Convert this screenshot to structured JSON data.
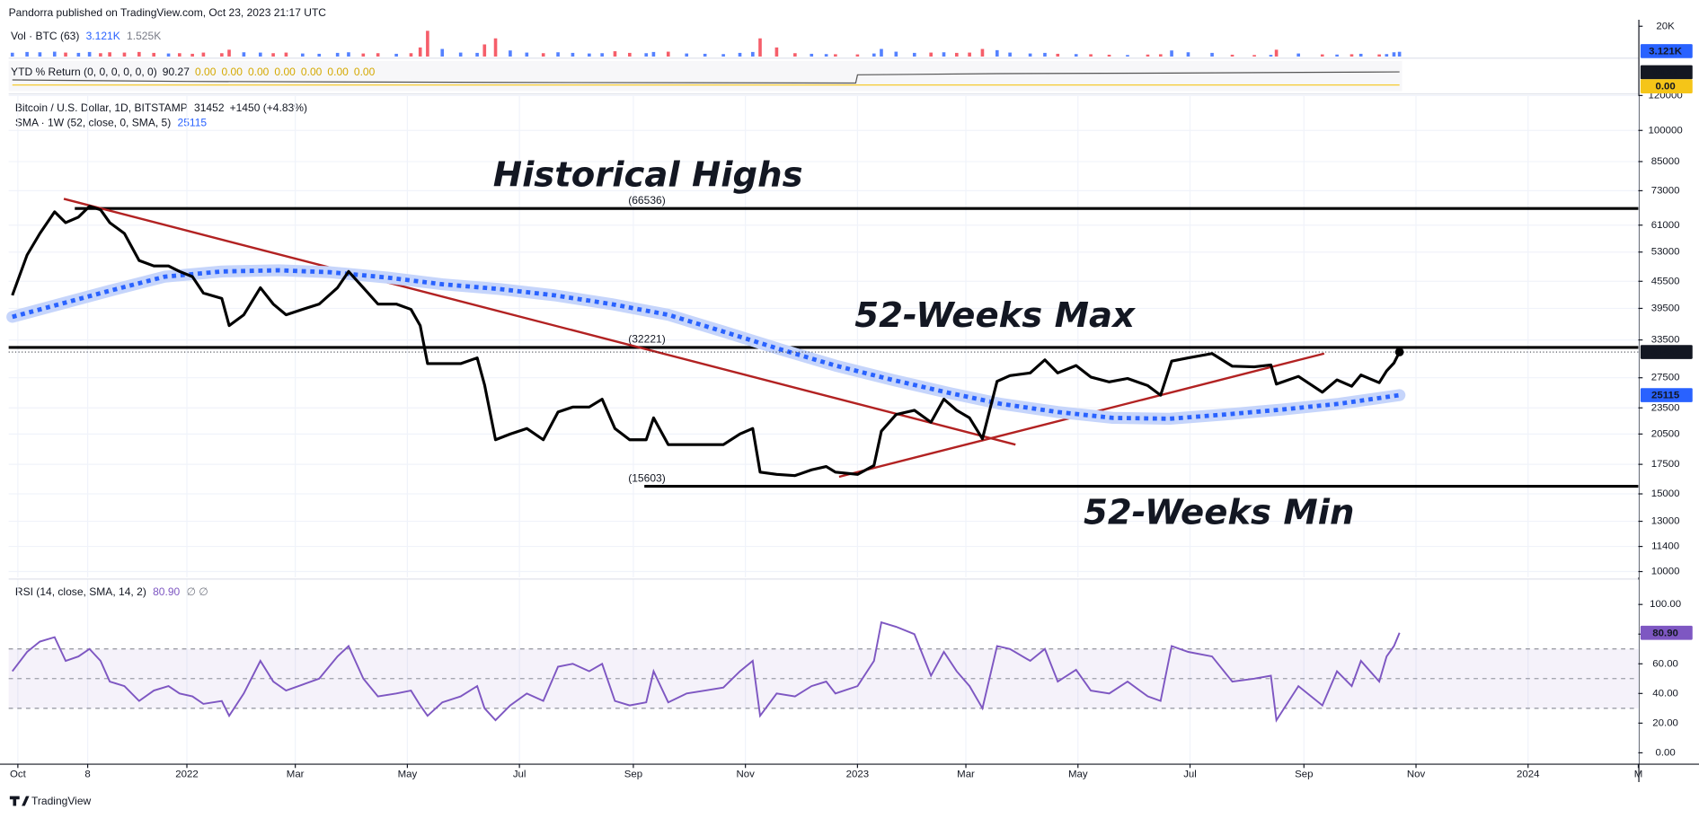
{
  "header": "Pandorra published on TradingView.com, Oct 23, 2023 21:17 UTC",
  "footer": "TradingView",
  "chart_data": [
    {
      "type": "line",
      "log_scale": true,
      "grid": true,
      "change": "+1450 (+4.83%)",
      "ylim": [
        9700,
        120000
      ],
      "yticks": [
        10000,
        11400,
        13000,
        15000,
        17500,
        20500,
        23500,
        27500,
        33500,
        39500,
        45500,
        53000,
        61000,
        73000,
        85000,
        100000,
        120000
      ],
      "series": [
        {
          "name": "Bitcoin / U.S. Dollar, 1D, BITSTAMP",
          "color": "#000000",
          "line_width": 2.6,
          "x": [
            "2021-09-28",
            "2021-10-06",
            "2021-10-13",
            "2021-10-21",
            "2021-10-27",
            "2021-11-03",
            "2021-11-09",
            "2021-11-15",
            "2021-11-20",
            "2021-11-28",
            "2021-12-06",
            "2021-12-14",
            "2021-12-22",
            "2021-12-28",
            "2022-01-04",
            "2022-01-10",
            "2022-01-20",
            "2022-01-24",
            "2022-02-01",
            "2022-02-10",
            "2022-02-17",
            "2022-02-24",
            "2022-03-05",
            "2022-03-14",
            "2022-03-24",
            "2022-03-30",
            "2022-04-07",
            "2022-04-15",
            "2022-04-25",
            "2022-05-03",
            "2022-05-08",
            "2022-05-12",
            "2022-05-20",
            "2022-05-30",
            "2022-06-08",
            "2022-06-12",
            "2022-06-18",
            "2022-06-26",
            "2022-07-05",
            "2022-07-14",
            "2022-07-22",
            "2022-07-30",
            "2022-08-08",
            "2022-08-15",
            "2022-08-22",
            "2022-08-30",
            "2022-09-08",
            "2022-09-12",
            "2022-09-20",
            "2022-09-30",
            "2022-10-10",
            "2022-10-20",
            "2022-10-29",
            "2022-11-05",
            "2022-11-09",
            "2022-11-18",
            "2022-11-28",
            "2022-12-07",
            "2022-12-15",
            "2022-12-20",
            "2023-01-01",
            "2023-01-10",
            "2023-01-14",
            "2023-01-22",
            "2023-02-01",
            "2023-02-10",
            "2023-02-17",
            "2023-02-24",
            "2023-03-03",
            "2023-03-10",
            "2023-03-18",
            "2023-03-25",
            "2023-04-05",
            "2023-04-13",
            "2023-04-20",
            "2023-04-30",
            "2023-05-08",
            "2023-05-18",
            "2023-05-28",
            "2023-06-08",
            "2023-06-15",
            "2023-06-21",
            "2023-06-30",
            "2023-07-13",
            "2023-07-24",
            "2023-08-05",
            "2023-08-14",
            "2023-08-17",
            "2023-08-29",
            "2023-09-11",
            "2023-09-19",
            "2023-09-27",
            "2023-10-02",
            "2023-10-12",
            "2023-10-16",
            "2023-10-20",
            "2023-10-23"
          ],
          "values": [
            42300,
            52200,
            58400,
            65400,
            61800,
            63600,
            67300,
            66100,
            61800,
            58400,
            50700,
            49300,
            49300,
            47900,
            46600,
            42800,
            41600,
            36100,
            38200,
            44000,
            40400,
            38200,
            39300,
            40400,
            44000,
            47900,
            44000,
            40400,
            40400,
            39300,
            36100,
            29600,
            29600,
            29600,
            30500,
            26500,
            19900,
            20500,
            21100,
            19900,
            23000,
            23600,
            23600,
            24600,
            21100,
            19900,
            19900,
            22300,
            19400,
            19400,
            19400,
            19400,
            20500,
            21100,
            16800,
            16600,
            16500,
            17000,
            17300,
            16800,
            16600,
            17400,
            20800,
            22700,
            23200,
            21800,
            24600,
            23200,
            22300,
            20000,
            27000,
            27800,
            28200,
            30200,
            28200,
            29300,
            27600,
            26900,
            27400,
            26400,
            25100,
            30000,
            30500,
            31200,
            29200,
            29100,
            29400,
            26600,
            27700,
            25500,
            27200,
            26300,
            27900,
            26800,
            28500,
            29700,
            31452
          ],
          "badge_color": "#131722"
        },
        {
          "name": "SMA · 1W (52, close, 0, SMA, 5)",
          "color": "#2962ff",
          "halo_color": "#c6d5fb",
          "line_width": 4,
          "x": [
            "2021-09-28",
            "2021-10-20",
            "2021-11-20",
            "2021-12-20",
            "2022-01-20",
            "2022-02-20",
            "2022-03-20",
            "2022-04-20",
            "2022-05-20",
            "2022-06-20",
            "2022-07-20",
            "2022-08-20",
            "2022-09-20",
            "2022-10-20",
            "2022-11-20",
            "2022-12-20",
            "2023-01-20",
            "2023-02-20",
            "2023-03-20",
            "2023-04-20",
            "2023-05-20",
            "2023-06-20",
            "2023-07-20",
            "2023-08-20",
            "2023-09-20",
            "2023-10-23"
          ],
          "values": [
            37800,
            40000,
            43300,
            46600,
            47900,
            48200,
            47700,
            46400,
            44800,
            43700,
            42300,
            40400,
            38200,
            35000,
            31900,
            29300,
            27200,
            25400,
            24000,
            23000,
            22300,
            22200,
            22700,
            23300,
            24000,
            25115
          ],
          "badge_color": "#2962ff"
        }
      ],
      "levels": [
        {
          "value": 66536,
          "label": "(66536)",
          "start": "2021-11-01",
          "color": "#000000",
          "label_color": "#b22222"
        },
        {
          "value": 32221,
          "label": "(32221)",
          "color": "#000000",
          "label_color": "#f5a623"
        },
        {
          "value": 15603,
          "label": "(15603)",
          "start": "2022-09-07",
          "color": "#000000",
          "label_color": "#2962ff"
        }
      ],
      "trendlines": [
        {
          "x": [
            "2021-10-26",
            "2023-03-28"
          ],
          "values": [
            70000,
            19400
          ],
          "color": "#b22222"
        },
        {
          "x": [
            "2022-12-22",
            "2023-09-12"
          ],
          "values": [
            16400,
            31200
          ],
          "color": "#b22222"
        }
      ],
      "annotations": [
        "Historical Highs",
        "52-Weeks Max",
        "52-Weeks Min"
      ],
      "annotation_color": "#e8303f"
    },
    {
      "type": "bar",
      "legend": "Vol · BTC (63)",
      "legend_values": [
        "3.121K",
        "1.525K"
      ],
      "color": "#2962ff",
      "down_color": "#f23645",
      "ylim": [
        0,
        22900
      ],
      "yticks": [
        {
          "value": 20000,
          "label": "20K"
        }
      ],
      "values": [
        2500,
        3000,
        2800,
        3200,
        2600,
        2400,
        3000,
        2200,
        2800,
        2600,
        3000,
        2400,
        2000,
        2200,
        1800,
        2600,
        2200,
        4500,
        2800,
        2600,
        2200,
        2600,
        2000,
        1800,
        2400,
        2800,
        2000,
        2200,
        1800,
        2200,
        6000,
        17000,
        5000,
        2600,
        2400,
        8000,
        12000,
        4000,
        2600,
        2200,
        2800,
        2400,
        2000,
        2200,
        3500,
        2400,
        2200,
        3000,
        3200,
        2000,
        1800,
        1600,
        2400,
        3000,
        12000,
        6000,
        2200,
        1800,
        1600,
        1500,
        1400,
        2000,
        5000,
        3200,
        2400,
        2600,
        2800,
        2400,
        2600,
        5000,
        4200,
        2600,
        2000,
        2400,
        1800,
        1600,
        1500,
        1200,
        1000,
        1300,
        1500,
        4000,
        2800,
        2400,
        1200,
        1000,
        1100,
        4500,
        2000,
        1400,
        1300,
        1500,
        1800,
        1400,
        1600,
        2800,
        3121
      ]
    },
    {
      "type": "line",
      "legend": "YTD % Return (0, 0, 0, 0, 0, 0)",
      "legend_values": [
        "90.27",
        "0.00",
        "0.00",
        "0.00",
        "0.00",
        "0.00",
        "0.00",
        "0.00"
      ],
      "ylim": [
        -42,
        166
      ],
      "series": [
        {
          "color": "#555555",
          "line_width": 1,
          "x": [
            "2021-09-28",
            "2022-01-01",
            "2022-06-18",
            "2022-12-31",
            "2023-01-01",
            "2023-03-18",
            "2023-06-21",
            "2023-10-23"
          ],
          "values": [
            35,
            25,
            18,
            14,
            70,
            78,
            82,
            90.27
          ],
          "badge_color": "#131722"
        },
        {
          "color": "#f5c518",
          "line_width": 1,
          "x": [
            "2021-09-28",
            "2023-10-23"
          ],
          "values": [
            0,
            0
          ],
          "badge_color": "#f5c518"
        }
      ]
    },
    {
      "type": "line",
      "legend": "RSI (14, close, SMA, 14, 2)",
      "last_label": "80.90",
      "legend_extra": "∅ ∅",
      "color": "#7e57c2",
      "band_color": "#7e57c2",
      "ylim": [
        -7.3,
        116.8
      ],
      "yticks": [
        {
          "value": 0,
          "label": "0.00"
        },
        {
          "value": 20,
          "label": "20.00"
        },
        {
          "value": 40,
          "label": "40.00"
        },
        {
          "value": 60,
          "label": "60.00"
        },
        {
          "value": 80,
          "label": "80.00"
        },
        {
          "value": 100,
          "label": "100.00"
        }
      ],
      "levels": [
        70,
        50,
        30
      ],
      "xlim": [
        "2021-09-26",
        "2024-03-01"
      ],
      "xticks": [
        {
          "value": "2021-10-01",
          "label": "Oct"
        },
        {
          "value": "2021-11-08",
          "label": "8"
        },
        {
          "value": "2022-01-01",
          "label": "2022"
        },
        {
          "value": "2022-03-01",
          "label": "Mar"
        },
        {
          "value": "2022-05-01",
          "label": "May"
        },
        {
          "value": "2022-07-01",
          "label": "Jul"
        },
        {
          "value": "2022-09-01",
          "label": "Sep"
        },
        {
          "value": "2022-11-01",
          "label": "Nov"
        },
        {
          "value": "2023-01-01",
          "label": "2023"
        },
        {
          "value": "2023-03-01",
          "label": "Mar"
        },
        {
          "value": "2023-05-01",
          "label": "May"
        },
        {
          "value": "2023-07-01",
          "label": "Jul"
        },
        {
          "value": "2023-09-01",
          "label": "Sep"
        },
        {
          "value": "2023-11-01",
          "label": "Nov"
        },
        {
          "value": "2024-01-01",
          "label": "2024"
        },
        {
          "value": "2024-03-01",
          "label": "M"
        }
      ],
      "values": [
        55,
        68,
        75,
        78,
        62,
        65,
        70,
        62,
        48,
        45,
        35,
        42,
        45,
        40,
        38,
        33,
        35,
        25,
        40,
        62,
        48,
        42,
        46,
        50,
        65,
        72,
        50,
        38,
        40,
        42,
        32,
        25,
        34,
        38,
        45,
        30,
        22,
        32,
        40,
        35,
        58,
        60,
        55,
        60,
        35,
        32,
        34,
        55,
        34,
        40,
        42,
        44,
        55,
        62,
        25,
        40,
        38,
        45,
        48,
        40,
        45,
        62,
        88,
        85,
        80,
        52,
        68,
        55,
        45,
        30,
        72,
        70,
        62,
        70,
        48,
        56,
        42,
        40,
        48,
        38,
        35,
        72,
        68,
        65,
        48,
        50,
        52,
        22,
        45,
        32,
        55,
        45,
        62,
        48,
        65,
        72,
        80.9
      ]
    }
  ]
}
